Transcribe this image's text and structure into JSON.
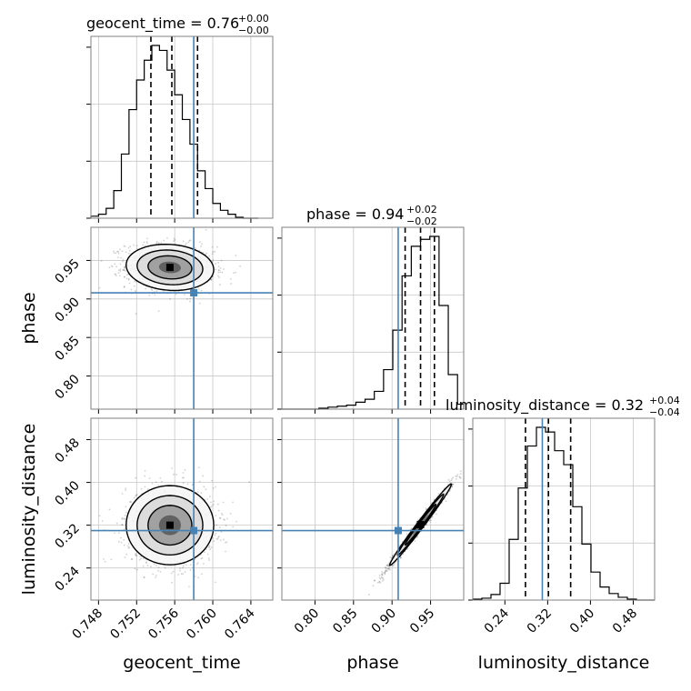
{
  "chart_data": {
    "type": "corner",
    "parameters": [
      {
        "name": "geocent_time",
        "axis_label": "geocent_time",
        "title_main": "geocent_time = 0.76",
        "title_plus": "+0.00",
        "title_minus": "−0.00",
        "range": [
          0.7472,
          0.7663
        ],
        "ticks": [
          0.748,
          0.752,
          0.756,
          0.76,
          0.764
        ],
        "tick_labels": [
          "0.748",
          "0.752",
          "0.756",
          "0.760",
          "0.764"
        ],
        "quantiles": [
          0.7535,
          0.7557,
          0.7584
        ],
        "truth": 0.758,
        "hist_bins": [
          0.7472,
          0.748,
          0.7488,
          0.7496,
          0.7504,
          0.7512,
          0.752,
          0.7528,
          0.7536,
          0.7544,
          0.7552,
          0.756,
          0.7568,
          0.7576,
          0.7584,
          0.7592,
          0.76,
          0.7608,
          0.7616,
          0.7624,
          0.7632,
          0.764,
          0.7648
        ],
        "hist_counts": [
          2,
          4,
          10,
          28,
          65,
          110,
          140,
          160,
          175,
          170,
          150,
          125,
          100,
          75,
          48,
          30,
          15,
          8,
          4,
          1,
          0,
          0
        ]
      },
      {
        "name": "phase",
        "axis_label": "phase",
        "title_main": "phase = 0.94",
        "title_plus": "+0.02",
        "title_minus": "−0.02",
        "range": [
          0.757,
          0.993
        ],
        "ticks": [
          0.8,
          0.85,
          0.9,
          0.95
        ],
        "tick_labels": [
          "0.80",
          "0.85",
          "0.90",
          "0.95"
        ],
        "quantiles": [
          0.917,
          0.937,
          0.955
        ],
        "truth": 0.908,
        "hist_bins": [
          0.757,
          0.769,
          0.781,
          0.793,
          0.805,
          0.817,
          0.829,
          0.841,
          0.853,
          0.865,
          0.877,
          0.889,
          0.901,
          0.913,
          0.925,
          0.937,
          0.949,
          0.961,
          0.973,
          0.985,
          0.993
        ],
        "hist_counts": [
          0,
          0,
          0,
          0,
          1,
          2,
          3,
          4,
          7,
          10,
          18,
          40,
          80,
          135,
          165,
          172,
          175,
          105,
          35,
          5
        ]
      },
      {
        "name": "luminosity_distance",
        "axis_label": "luminosity_distance",
        "title_main": "luminosity_distance = 0.32",
        "title_plus": "+0.04",
        "title_minus": "−0.04",
        "range": [
          0.18,
          0.52
        ],
        "ticks": [
          0.24,
          0.32,
          0.4,
          0.48
        ],
        "tick_labels": [
          "0.24",
          "0.32",
          "0.40",
          "0.48"
        ],
        "quantiles": [
          0.2785,
          0.3215,
          0.363
        ],
        "truth": 0.31,
        "hist_bins": [
          0.18,
          0.197,
          0.214,
          0.231,
          0.248,
          0.265,
          0.282,
          0.299,
          0.316,
          0.333,
          0.35,
          0.367,
          0.384,
          0.401,
          0.418,
          0.435,
          0.452,
          0.469,
          0.486,
          0.503,
          0.52
        ],
        "hist_counts": [
          1,
          2,
          6,
          18,
          65,
          120,
          165,
          185,
          180,
          160,
          145,
          100,
          60,
          30,
          14,
          7,
          3,
          1,
          0,
          0
        ]
      }
    ],
    "pairs": [
      {
        "x": "geocent_time",
        "y": "phase",
        "center": [
          0.7555,
          0.941
        ],
        "spread": [
          0.0023,
          0.015
        ],
        "correlation": -0.1
      },
      {
        "x": "geocent_time",
        "y": "luminosity_distance",
        "center": [
          0.7555,
          0.32
        ],
        "spread": [
          0.0023,
          0.037
        ],
        "correlation": 0.0
      },
      {
        "x": "phase",
        "y": "luminosity_distance",
        "center": [
          0.937,
          0.321
        ],
        "spread": [
          0.02,
          0.038
        ],
        "correlation": 0.99
      }
    ],
    "truth_color": "#4682b4",
    "grid": true,
    "legend": "none"
  }
}
